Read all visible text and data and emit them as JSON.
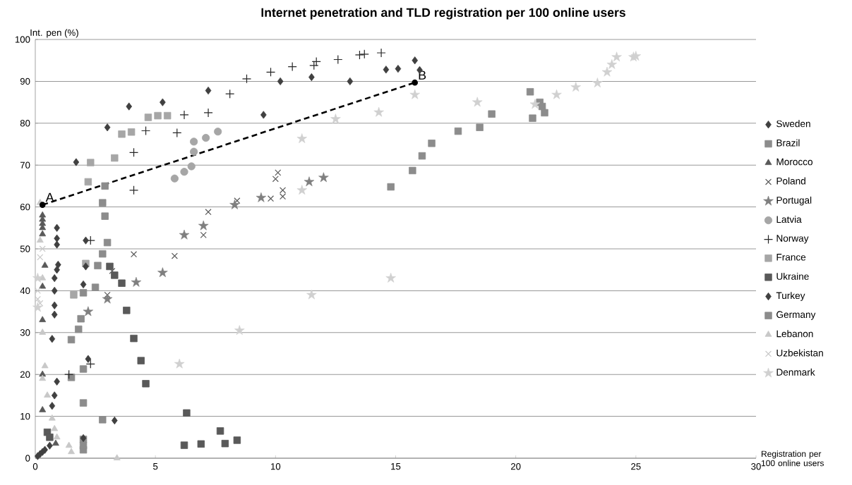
{
  "chart_data": {
    "type": "scatter",
    "title": "Internet penetration and TLD registration per 100 online users",
    "xlabel": "Registration per 100 online users",
    "ylabel": "Int. pen (%)",
    "xlim": [
      0,
      30
    ],
    "ylim": [
      0,
      100
    ],
    "xticks": [
      0,
      5,
      10,
      15,
      20,
      25,
      30
    ],
    "yticks": [
      0,
      10,
      20,
      30,
      40,
      50,
      60,
      70,
      80,
      90,
      100
    ],
    "grid": "y",
    "legend": "right",
    "annotations": [
      {
        "text": "A",
        "x": 0.3,
        "y": 60.5
      },
      {
        "text": "B",
        "x": 15.8,
        "y": 89.7
      }
    ],
    "series": [
      {
        "name": "Sweden",
        "color": "#404040",
        "marker": "diamond",
        "x": [
          1.7,
          3.0,
          3.9,
          5.3,
          7.2,
          9.5,
          10.2,
          11.5,
          13.1,
          14.6,
          15.1,
          15.8,
          16.0
        ],
        "values": [
          70.7,
          79,
          84,
          85,
          87.8,
          82,
          90,
          91,
          90,
          92.8,
          93,
          95,
          92.7
        ]
      },
      {
        "name": "Brazil",
        "color": "#8c8c8c",
        "marker": "square",
        "x": [
          1.5,
          1.8,
          1.9,
          2.0,
          2.0,
          1.5,
          2.0,
          2.8,
          2.0,
          2.0,
          2.0,
          2.5,
          2.6
        ],
        "values": [
          28.3,
          30.8,
          33.3,
          39.5,
          13.2,
          19.3,
          21.3,
          9.2,
          2,
          3,
          4.5,
          40.8,
          46
        ]
      },
      {
        "name": "Morocco",
        "color": "#595959",
        "marker": "triangle",
        "x": [
          0.3,
          0.3,
          0.3,
          0.3,
          0.3,
          0.4,
          0.3,
          0.3,
          0.3,
          0.3,
          0.85
        ],
        "values": [
          58,
          57,
          56,
          55,
          53.5,
          46,
          41,
          33,
          20,
          11.5,
          3.5
        ]
      },
      {
        "name": "Poland",
        "color": "#595959",
        "marker": "cross",
        "x": [
          3.2,
          4.1,
          5.8,
          7.0,
          7.2,
          8.4,
          9.8,
          10.0,
          10.1,
          10.3,
          10.3,
          3.0
        ],
        "values": [
          44.7,
          48.7,
          48.3,
          53.3,
          58.8,
          61.5,
          62,
          66.7,
          68.2,
          62.5,
          64,
          39
        ]
      },
      {
        "name": "Portugal",
        "color": "#7f7f7f",
        "marker": "star",
        "x": [
          2.2,
          3.0,
          4.2,
          5.3,
          6.2,
          7.0,
          8.3,
          9.4,
          11.4,
          12.0
        ],
        "values": [
          35,
          38,
          42,
          44.3,
          53.3,
          55.5,
          60.5,
          62.2,
          66,
          67
        ]
      },
      {
        "name": "Latvia",
        "color": "#a6a6a6",
        "marker": "circle",
        "x": [
          5.8,
          6.2,
          6.5,
          6.6,
          6.6,
          7.1,
          7.6
        ],
        "values": [
          66.8,
          68.4,
          69.7,
          73.2,
          75.6,
          76.5,
          78
        ]
      },
      {
        "name": "Norway",
        "color": "#262626",
        "marker": "plus",
        "x": [
          1.4,
          2.3,
          2.3,
          4.1,
          4.1,
          4.6,
          5.9,
          6.2,
          7.2,
          8.1,
          8.8,
          9.8,
          10.7,
          11.6,
          11.7,
          12.6,
          13.5,
          13.7,
          14.4
        ],
        "values": [
          20,
          22.5,
          52,
          64,
          73,
          78.2,
          77.7,
          82,
          82.5,
          87,
          90.6,
          92.2,
          93.5,
          93.8,
          94.7,
          95.2,
          96.3,
          96.5,
          96.8
        ]
      },
      {
        "name": "France",
        "color": "#a6a6a6",
        "marker": "square",
        "x": [
          1.6,
          2.1,
          2.2,
          2.3,
          3.3,
          3.6,
          4.0,
          4.7,
          5.1,
          5.5
        ],
        "values": [
          39,
          46.5,
          66,
          70.6,
          71.7,
          77.4,
          77.9,
          81.4,
          81.8,
          81.8
        ]
      },
      {
        "name": "Ukraine",
        "color": "#595959",
        "marker": "square",
        "x": [
          0.5,
          0.6,
          3.1,
          3.3,
          3.6,
          3.8,
          4.1,
          4.4,
          4.6,
          6.3,
          6.2,
          6.9,
          7.7,
          7.9,
          8.4
        ],
        "values": [
          6.2,
          5,
          45.8,
          43.7,
          41.8,
          35.3,
          28.6,
          23.3,
          17.8,
          10.8,
          3.1,
          3.4,
          6.5,
          3.5,
          4.3
        ]
      },
      {
        "name": "Turkey",
        "color": "#404040",
        "marker": "diamond",
        "x": [
          0.1,
          0.2,
          0.3,
          0.4,
          0.6,
          0.9,
          0.7,
          0.8,
          0.7,
          0.8,
          0.8,
          0.8,
          0.8,
          0.9,
          0.95,
          0.9,
          0.9,
          0.9,
          2.1,
          2.1,
          2.0,
          2.2,
          2.0,
          3.3
        ],
        "values": [
          0.5,
          1,
          1.5,
          2,
          3,
          18.3,
          12.5,
          15,
          28.5,
          34.3,
          36.5,
          40,
          43,
          45,
          46.2,
          51,
          52.5,
          55,
          52,
          45.8,
          41.5,
          23.7,
          4.8,
          9
        ]
      },
      {
        "name": "Germany",
        "color": "#8c8c8c",
        "marker": "square",
        "x": [
          2.8,
          3.0,
          2.9,
          2.8,
          2.9,
          14.8,
          15.7,
          16.1,
          16.5,
          17.6,
          18.5,
          19.0,
          20.6,
          20.7,
          21.0,
          21.1,
          21.2
        ],
        "values": [
          48.8,
          51.5,
          57.8,
          61,
          65,
          64.8,
          68.7,
          72.2,
          75.2,
          78.1,
          79,
          82.2,
          87.5,
          81.2,
          85,
          84,
          82.5
        ]
      },
      {
        "name": "Lebanon",
        "color": "#c8c8c8",
        "marker": "triangle",
        "x": [
          0.2,
          0.2,
          0.3,
          0.3,
          0.4,
          0.3,
          0.5,
          0.7,
          0.8,
          0.9,
          1.4,
          1.5,
          3.4
        ],
        "values": [
          61,
          52,
          43,
          30,
          22,
          19,
          15,
          9.5,
          7,
          5,
          3,
          1.5,
          0
        ]
      },
      {
        "name": "Uzbekistan",
        "color": "#c8c8c8",
        "marker": "cross",
        "x": [
          0.1,
          0.1,
          0.2,
          0.2,
          0.3
        ],
        "values": [
          38,
          40,
          37,
          48,
          50
        ]
      },
      {
        "name": "Denmark",
        "color": "#d0d0d0",
        "marker": "star",
        "x": [
          0.1,
          0.1,
          6.0,
          8.5,
          11.5,
          14.8,
          11.1,
          11.1,
          12.5,
          14.3,
          15.8,
          18.4,
          20.8,
          21.7,
          22.5,
          23.4,
          23.8,
          24.0,
          24.2,
          24.9,
          25.0
        ],
        "values": [
          36,
          43,
          22.5,
          30.5,
          39,
          43,
          64,
          76.3,
          81,
          82.6,
          86.8,
          85,
          84.5,
          86.8,
          88.6,
          89.6,
          92.2,
          94,
          95.8,
          95.8,
          96
        ]
      },
      {
        "type": "line",
        "color": "#000000",
        "marker": "circle",
        "line_style": "dashed",
        "x": [
          0.3,
          15.8
        ],
        "values": [
          60.5,
          89.7
        ]
      }
    ]
  }
}
